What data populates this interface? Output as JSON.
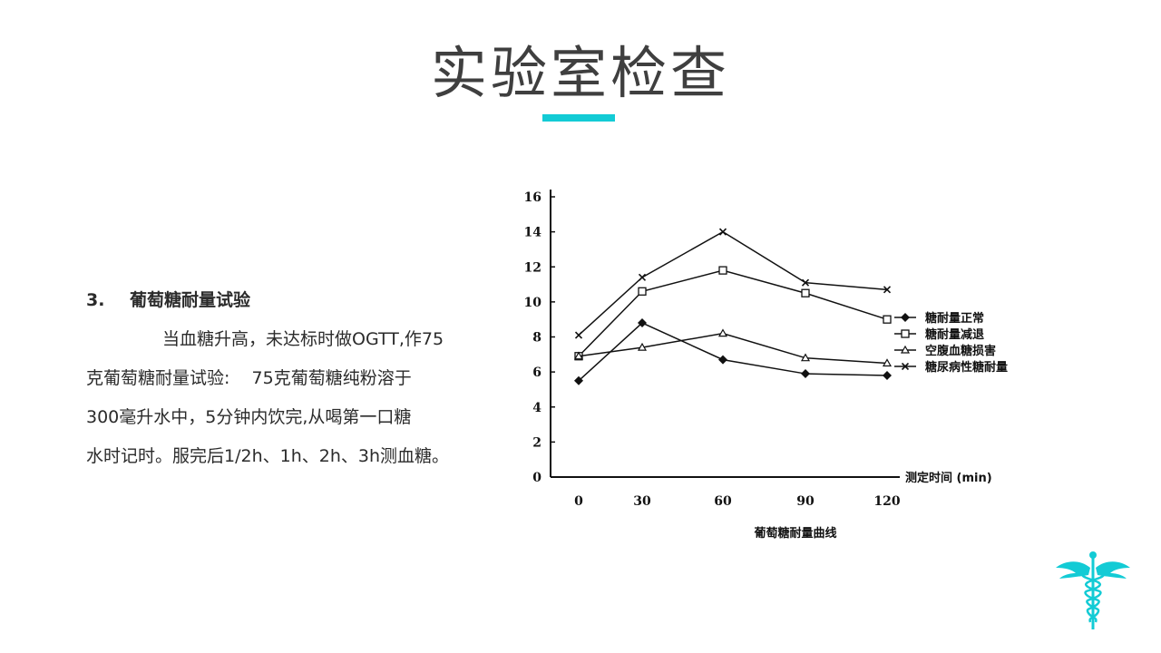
{
  "slide": {
    "title": "实验室检查",
    "accent_color": "#13cbd5"
  },
  "section": {
    "number": "3.",
    "heading": "葡萄糖耐量试验",
    "lines": [
      "当血糖升高，未达标时做OGTT,作75",
      "克葡萄糖耐量试验:    75克葡萄糖纯粉溶于",
      "300毫升水中，5分钟内饮完,从喝第一口糖",
      "水时记时。服完后1/2h、1h、2h、3h测血糖。"
    ]
  },
  "chart_data": {
    "type": "line",
    "title": "葡萄糖耐量曲线",
    "xlabel": "测定时间 (min)",
    "ylabel": "",
    "x": [
      0,
      30,
      60,
      90,
      120
    ],
    "x_tick_labels": [
      "0",
      "30",
      "60",
      "90",
      "120"
    ],
    "y_ticks": [
      0,
      2,
      4,
      6,
      8,
      10,
      12,
      14,
      16
    ],
    "ylim": [
      0,
      16
    ],
    "grid": false,
    "legend_position": "right",
    "series": [
      {
        "name": "糖耐量正常",
        "marker": "filled-diamond",
        "values": [
          5.5,
          8.8,
          6.7,
          5.9,
          5.8
        ]
      },
      {
        "name": "糖耐量减退",
        "marker": "open-square",
        "values": [
          6.9,
          10.6,
          11.8,
          10.5,
          9.0
        ]
      },
      {
        "name": "空腹血糖损害",
        "marker": "triangle",
        "values": [
          6.9,
          7.4,
          8.2,
          6.8,
          6.5
        ]
      },
      {
        "name": "糖尿病性糖耐量",
        "marker": "cross",
        "values": [
          8.1,
          11.4,
          14.0,
          11.1,
          10.7
        ]
      }
    ]
  },
  "logo": {
    "icon": "caduceus-icon",
    "color": "#13cbd5"
  }
}
